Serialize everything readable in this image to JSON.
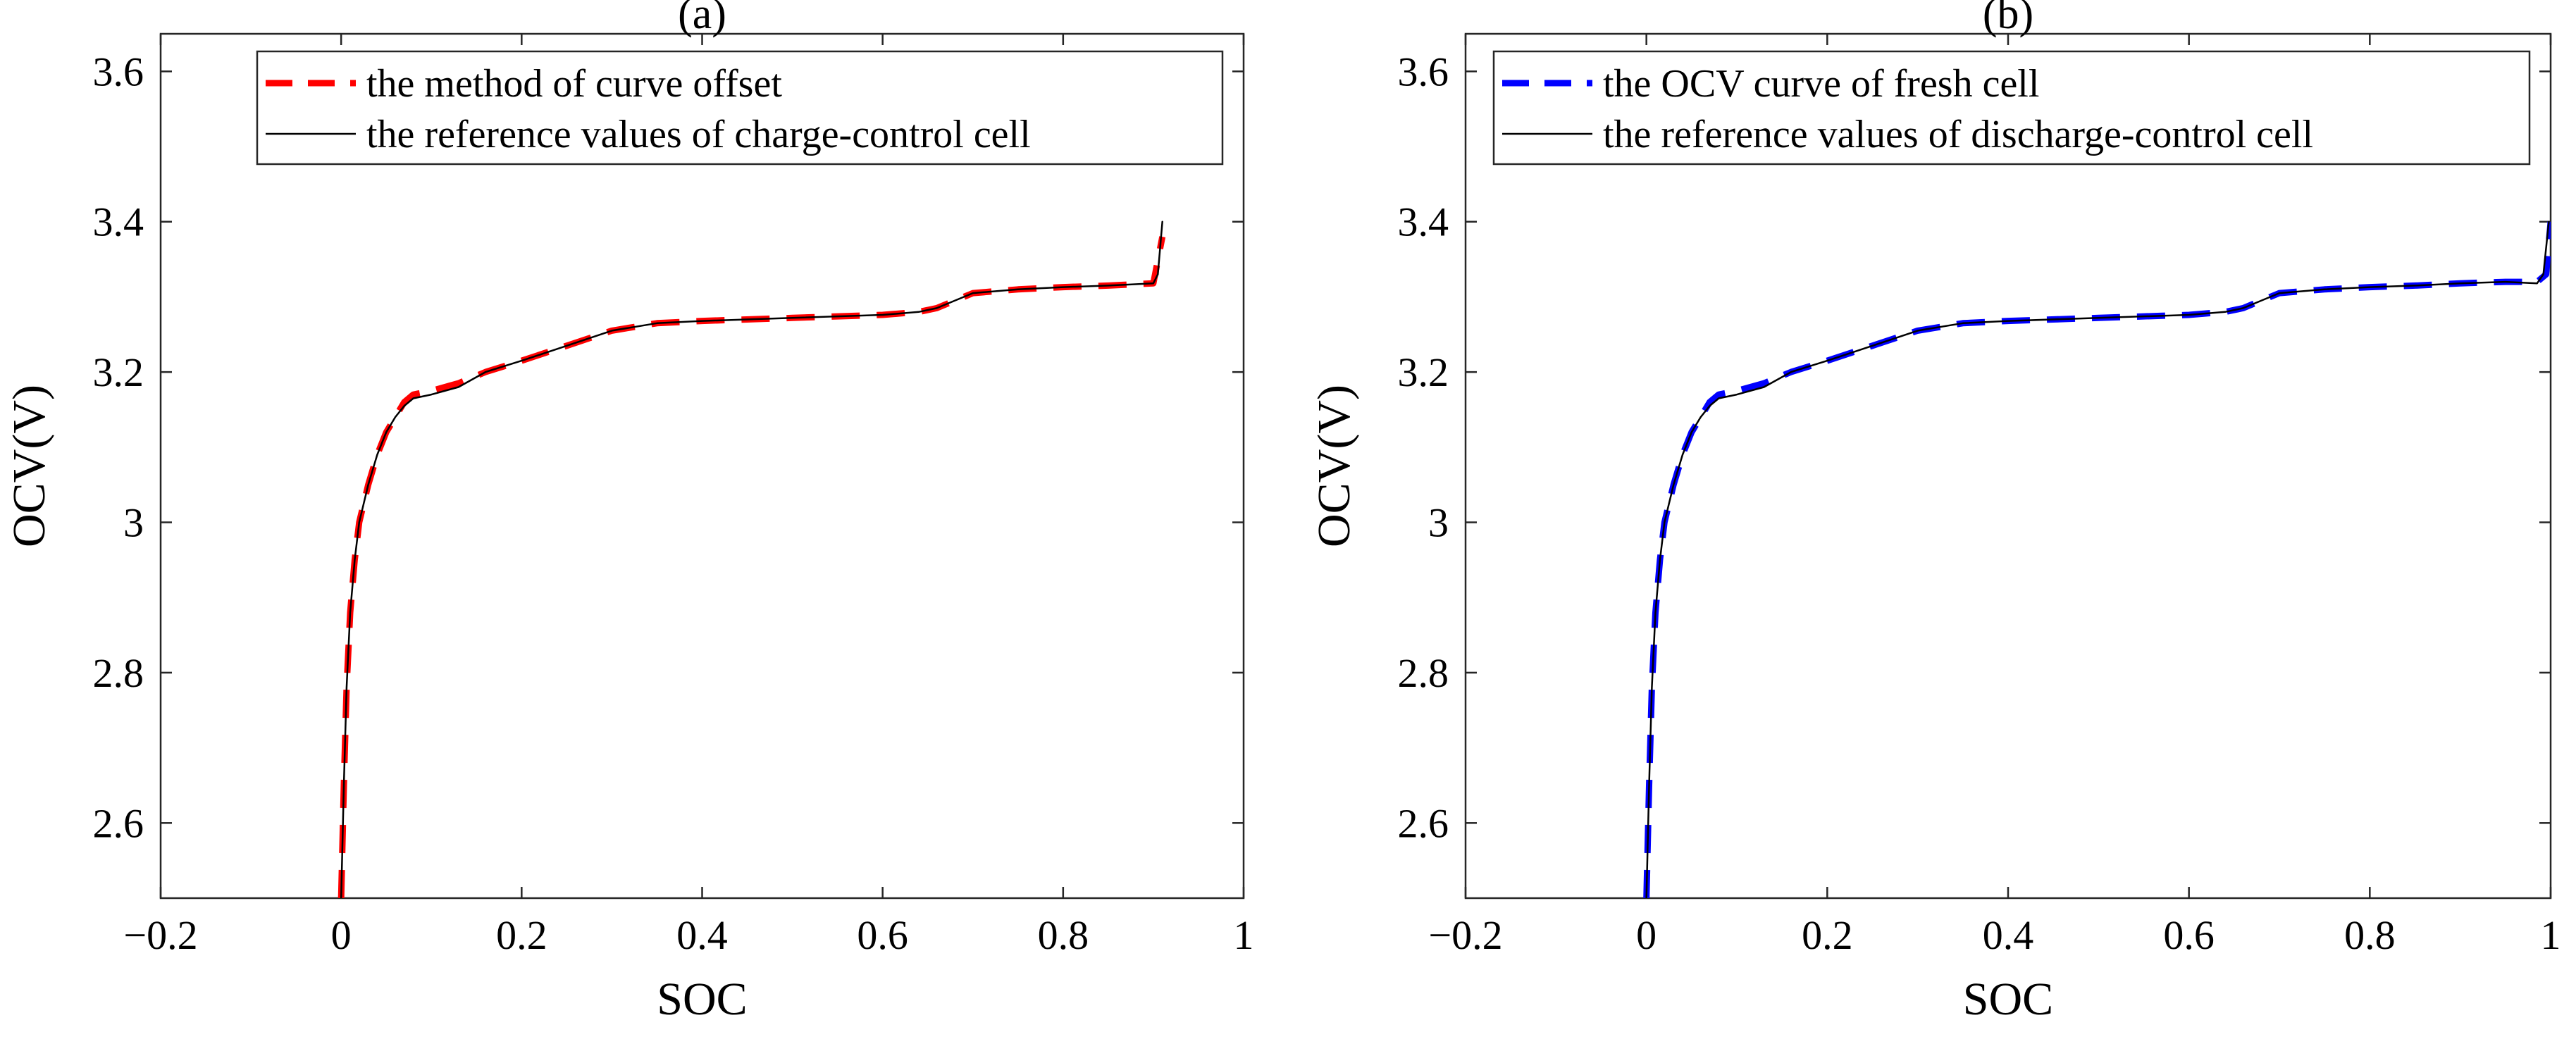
{
  "chart_data": [
    {
      "type": "line",
      "title": "(a)",
      "xlabel": "SOC",
      "ylabel": "OCV(V)",
      "xlim": [
        -0.2,
        1
      ],
      "ylim": [
        2.5,
        3.65
      ],
      "xticks": [
        -0.2,
        0,
        0.2,
        0.4,
        0.6,
        0.8,
        1
      ],
      "xtick_labels": [
        "−0.2",
        "0",
        "0.2",
        "0.4",
        "0.6",
        "0.8",
        "1"
      ],
      "yticks": [
        2.6,
        2.8,
        3,
        3.2,
        3.4,
        3.6
      ],
      "ytick_labels": [
        "2.6",
        "2.8",
        "3",
        "3.2",
        "3.4",
        "3.6"
      ],
      "grid": false,
      "legend_position": "top-right",
      "series": [
        {
          "name": "the method of curve offset",
          "style": "dashed",
          "color": "#ff0000",
          "x": [
            0,
            0.003,
            0.006,
            0.01,
            0.015,
            0.02,
            0.03,
            0.04,
            0.05,
            0.06,
            0.07,
            0.08,
            0.1,
            0.13,
            0.16,
            0.2,
            0.25,
            0.3,
            0.35,
            0.4,
            0.5,
            0.6,
            0.64,
            0.66,
            0.7,
            0.75,
            0.8,
            0.85,
            0.9,
            0.91
          ],
          "y": [
            2.5,
            2.65,
            2.78,
            2.88,
            2.95,
            3.0,
            3.05,
            3.09,
            3.12,
            3.14,
            3.16,
            3.17,
            3.175,
            3.185,
            3.2,
            3.215,
            3.235,
            3.255,
            3.265,
            3.268,
            3.272,
            3.276,
            3.28,
            3.285,
            3.305,
            3.31,
            3.313,
            3.315,
            3.318,
            3.38
          ]
        },
        {
          "name": "the reference values of charge-control cell",
          "style": "solid",
          "color": "#000000",
          "x": [
            0,
            0.003,
            0.006,
            0.01,
            0.015,
            0.02,
            0.03,
            0.04,
            0.05,
            0.06,
            0.07,
            0.08,
            0.1,
            0.13,
            0.16,
            0.2,
            0.25,
            0.3,
            0.35,
            0.4,
            0.5,
            0.6,
            0.64,
            0.66,
            0.7,
            0.75,
            0.8,
            0.85,
            0.9,
            0.905,
            0.91
          ],
          "y": [
            2.5,
            2.65,
            2.78,
            2.88,
            2.95,
            3.0,
            3.05,
            3.09,
            3.12,
            3.14,
            3.155,
            3.165,
            3.17,
            3.18,
            3.2,
            3.215,
            3.235,
            3.255,
            3.265,
            3.268,
            3.272,
            3.276,
            3.28,
            3.285,
            3.305,
            3.31,
            3.313,
            3.315,
            3.318,
            3.33,
            3.4
          ]
        }
      ]
    },
    {
      "type": "line",
      "title": "(b)",
      "xlabel": "SOC",
      "ylabel": "OCV(V)",
      "xlim": [
        -0.2,
        1
      ],
      "ylim": [
        2.5,
        3.65
      ],
      "xticks": [
        -0.2,
        0,
        0.2,
        0.4,
        0.6,
        0.8,
        1
      ],
      "xtick_labels": [
        "−0.2",
        "0",
        "0.2",
        "0.4",
        "0.6",
        "0.8",
        "1"
      ],
      "yticks": [
        2.6,
        2.8,
        3,
        3.2,
        3.4,
        3.6
      ],
      "ytick_labels": [
        "2.6",
        "2.8",
        "3",
        "3.2",
        "3.4",
        "3.6"
      ],
      "grid": false,
      "legend_position": "top-right",
      "series": [
        {
          "name": "the OCV curve of fresh cell",
          "style": "dashed",
          "color": "#0000ff",
          "x": [
            0,
            0.003,
            0.006,
            0.01,
            0.015,
            0.02,
            0.03,
            0.04,
            0.05,
            0.06,
            0.07,
            0.08,
            0.1,
            0.13,
            0.16,
            0.2,
            0.25,
            0.3,
            0.35,
            0.4,
            0.5,
            0.6,
            0.64,
            0.66,
            0.7,
            0.75,
            0.8,
            0.85,
            0.9,
            0.95,
            0.985,
            0.995,
            1.0
          ],
          "y": [
            2.5,
            2.65,
            2.78,
            2.88,
            2.95,
            3.0,
            3.05,
            3.09,
            3.12,
            3.14,
            3.16,
            3.17,
            3.175,
            3.185,
            3.2,
            3.215,
            3.235,
            3.255,
            3.265,
            3.268,
            3.272,
            3.276,
            3.28,
            3.285,
            3.305,
            3.31,
            3.313,
            3.315,
            3.318,
            3.32,
            3.32,
            3.33,
            3.4
          ]
        },
        {
          "name": "the reference values of discharge-control cell",
          "style": "solid",
          "color": "#000000",
          "x": [
            0,
            0.003,
            0.006,
            0.01,
            0.015,
            0.02,
            0.03,
            0.04,
            0.05,
            0.06,
            0.07,
            0.08,
            0.1,
            0.13,
            0.16,
            0.2,
            0.25,
            0.3,
            0.35,
            0.4,
            0.5,
            0.6,
            0.64,
            0.66,
            0.7,
            0.75,
            0.8,
            0.85,
            0.9,
            0.95,
            0.985,
            0.992,
            0.998
          ],
          "y": [
            2.5,
            2.65,
            2.78,
            2.88,
            2.95,
            3.0,
            3.05,
            3.09,
            3.12,
            3.14,
            3.155,
            3.165,
            3.17,
            3.18,
            3.2,
            3.215,
            3.235,
            3.255,
            3.265,
            3.268,
            3.272,
            3.276,
            3.28,
            3.285,
            3.305,
            3.31,
            3.313,
            3.315,
            3.318,
            3.32,
            3.318,
            3.33,
            3.4
          ]
        }
      ]
    }
  ]
}
